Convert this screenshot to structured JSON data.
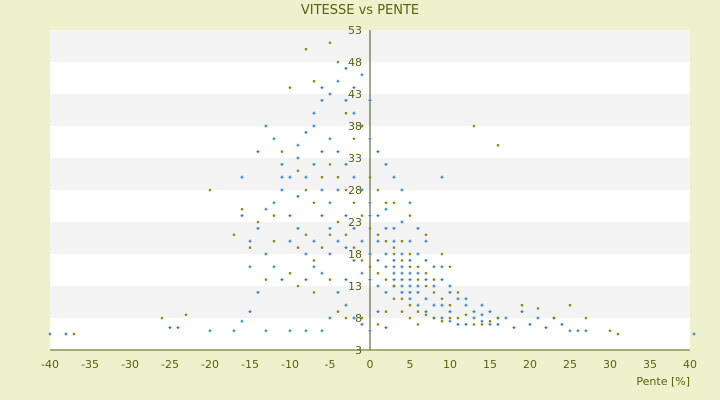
{
  "chart_data": {
    "type": "scatter",
    "title": "VITESSE vs PENTE",
    "xlabel": "Pente [%]",
    "ylabel": "",
    "xlim": [
      -40,
      40
    ],
    "ylim": [
      3,
      53
    ],
    "x_ticks": [
      -40,
      -35,
      -30,
      -25,
      -20,
      -15,
      -10,
      -5,
      0,
      5,
      10,
      15,
      20,
      25,
      30,
      35,
      40
    ],
    "y_ticks": [
      3,
      8,
      13,
      18,
      23,
      28,
      33,
      38,
      43,
      48,
      53
    ],
    "grid": "horizontal-bands",
    "legend": "none",
    "series": [
      {
        "color": "#3a7fc8",
        "marker": "plus",
        "points": [
          [
            -40,
            5.5
          ],
          [
            -38,
            5.5
          ],
          [
            -25,
            6.5
          ],
          [
            -24,
            6.5
          ],
          [
            -20,
            6
          ],
          [
            -17,
            6
          ],
          [
            -16,
            7.5
          ],
          [
            -15,
            9
          ],
          [
            -14,
            12
          ],
          [
            -15,
            20
          ],
          [
            -16,
            30
          ],
          [
            -14,
            34
          ],
          [
            -13,
            38
          ],
          [
            -12,
            36
          ],
          [
            -11,
            32
          ],
          [
            -10,
            30
          ],
          [
            -9,
            35
          ],
          [
            -8,
            37
          ],
          [
            -7,
            40
          ],
          [
            -6,
            42
          ],
          [
            -5,
            43
          ],
          [
            -4,
            45
          ],
          [
            -3,
            42
          ],
          [
            -2,
            40
          ],
          [
            -1,
            38
          ],
          [
            0,
            36
          ],
          [
            1,
            34
          ],
          [
            2,
            32
          ],
          [
            -12,
            26
          ],
          [
            -11,
            28
          ],
          [
            -10,
            24
          ],
          [
            -9,
            27
          ],
          [
            -8,
            30
          ],
          [
            -7,
            32
          ],
          [
            -6,
            34
          ],
          [
            -5,
            36
          ],
          [
            -4,
            34
          ],
          [
            -3,
            32
          ],
          [
            -2,
            30
          ],
          [
            -1,
            28
          ],
          [
            0,
            26
          ],
          [
            1,
            24
          ],
          [
            2,
            22
          ],
          [
            3,
            20
          ],
          [
            4,
            18
          ],
          [
            5,
            17
          ],
          [
            6,
            15
          ],
          [
            7,
            14
          ],
          [
            8,
            13
          ],
          [
            -10,
            20
          ],
          [
            -9,
            22
          ],
          [
            -8,
            18
          ],
          [
            -7,
            20
          ],
          [
            -6,
            24
          ],
          [
            -5,
            26
          ],
          [
            -4,
            28
          ],
          [
            -3,
            24
          ],
          [
            -2,
            22
          ],
          [
            -1,
            20
          ],
          [
            0,
            18
          ],
          [
            1,
            17
          ],
          [
            2,
            16
          ],
          [
            3,
            15
          ],
          [
            4,
            14
          ],
          [
            5,
            13
          ],
          [
            6,
            12
          ],
          [
            7,
            11
          ],
          [
            8,
            10
          ],
          [
            9,
            10
          ],
          [
            10,
            9
          ],
          [
            -8,
            14
          ],
          [
            -7,
            16
          ],
          [
            -6,
            15
          ],
          [
            -5,
            18
          ],
          [
            -4,
            20
          ],
          [
            -3,
            19
          ],
          [
            -2,
            17
          ],
          [
            -1,
            15
          ],
          [
            0,
            14
          ],
          [
            1,
            13
          ],
          [
            2,
            12
          ],
          [
            3,
            13
          ],
          [
            4,
            12
          ],
          [
            5,
            11
          ],
          [
            6,
            10
          ],
          [
            7,
            9
          ],
          [
            8,
            8
          ],
          [
            9,
            8
          ],
          [
            10,
            7.5
          ],
          [
            11,
            7
          ],
          [
            12,
            7
          ],
          [
            3,
            17
          ],
          [
            4,
            16
          ],
          [
            5,
            15
          ],
          [
            3,
            16
          ],
          [
            4,
            15
          ],
          [
            5,
            14
          ],
          [
            6,
            13
          ],
          [
            2,
            18
          ],
          [
            3,
            14
          ],
          [
            4,
            13
          ],
          [
            5,
            12
          ],
          [
            13,
            8
          ],
          [
            14,
            7.5
          ],
          [
            15,
            7
          ],
          [
            16,
            7
          ],
          [
            18,
            6.5
          ],
          [
            20,
            7
          ],
          [
            22,
            6.5
          ],
          [
            24,
            7
          ],
          [
            25,
            6
          ],
          [
            26,
            6
          ],
          [
            27,
            6
          ],
          [
            10,
            13
          ],
          [
            12,
            11
          ],
          [
            14,
            10
          ],
          [
            9,
            16
          ],
          [
            7,
            20
          ],
          [
            6,
            22
          ],
          [
            5,
            26
          ],
          [
            9,
            30
          ],
          [
            3,
            30
          ],
          [
            4,
            28
          ],
          [
            -1,
            46
          ],
          [
            -3,
            47
          ],
          [
            -2,
            44
          ],
          [
            0,
            42
          ],
          [
            -6,
            44
          ],
          [
            -7,
            38
          ],
          [
            -9,
            33
          ],
          [
            -11,
            30
          ],
          [
            -13,
            25
          ],
          [
            -14,
            22
          ],
          [
            -3,
            10
          ],
          [
            -2,
            8
          ],
          [
            -1,
            7
          ],
          [
            0,
            6
          ],
          [
            1,
            9
          ],
          [
            2,
            6.5
          ],
          [
            -5,
            8
          ],
          [
            -6,
            6
          ],
          [
            -8,
            6
          ],
          [
            -10,
            6
          ],
          [
            -13,
            6
          ],
          [
            -11,
            14
          ],
          [
            -12,
            16
          ],
          [
            -13,
            18
          ],
          [
            -15,
            16
          ],
          [
            -16,
            24
          ],
          [
            -4,
            12
          ],
          [
            -3,
            14
          ],
          [
            -5,
            22
          ],
          [
            -6,
            28
          ],
          [
            0,
            24
          ],
          [
            1,
            20
          ],
          [
            2,
            25
          ],
          [
            3,
            22
          ],
          [
            4,
            23
          ],
          [
            5,
            20
          ],
          [
            6,
            18
          ],
          [
            7,
            17
          ],
          [
            8,
            16
          ],
          [
            9,
            14
          ],
          [
            10,
            12
          ],
          [
            11,
            11
          ],
          [
            12,
            10
          ],
          [
            13,
            9
          ],
          [
            14,
            8.5
          ],
          [
            15,
            9
          ],
          [
            16,
            8
          ],
          [
            17,
            8
          ],
          [
            19,
            9
          ],
          [
            21,
            8
          ],
          [
            23,
            8
          ],
          [
            40.5,
            5.5
          ]
        ]
      },
      {
        "color": "#8a8a10",
        "marker": "dot",
        "points": [
          [
            -37,
            5.5
          ],
          [
            -26,
            8
          ],
          [
            -23,
            8.5
          ],
          [
            -20,
            28
          ],
          [
            -17,
            21
          ],
          [
            -16,
            25
          ],
          [
            -14,
            23
          ],
          [
            -12,
            24
          ],
          [
            -10,
            44
          ],
          [
            -8,
            50
          ],
          [
            -7,
            45
          ],
          [
            -5,
            51
          ],
          [
            -4,
            48
          ],
          [
            -3,
            40
          ],
          [
            -2,
            36
          ],
          [
            -1,
            38
          ],
          [
            0,
            30
          ],
          [
            1,
            28
          ],
          [
            2,
            26
          ],
          [
            -11,
            34
          ],
          [
            -9,
            31
          ],
          [
            -8,
            28
          ],
          [
            -7,
            26
          ],
          [
            -6,
            30
          ],
          [
            -5,
            32
          ],
          [
            -4,
            30
          ],
          [
            -3,
            28
          ],
          [
            -2,
            26
          ],
          [
            -1,
            24
          ],
          [
            0,
            22
          ],
          [
            1,
            21
          ],
          [
            2,
            20
          ],
          [
            3,
            18
          ],
          [
            4,
            17
          ],
          [
            5,
            16
          ],
          [
            6,
            14
          ],
          [
            7,
            13
          ],
          [
            8,
            12
          ],
          [
            9,
            11
          ],
          [
            10,
            10
          ],
          [
            -9,
            19
          ],
          [
            -8,
            21
          ],
          [
            -7,
            17
          ],
          [
            -6,
            19
          ],
          [
            -5,
            21
          ],
          [
            -4,
            23
          ],
          [
            -3,
            21
          ],
          [
            -2,
            19
          ],
          [
            -1,
            17
          ],
          [
            0,
            16
          ],
          [
            1,
            15
          ],
          [
            2,
            14
          ],
          [
            3,
            13
          ],
          [
            4,
            11
          ],
          [
            5,
            10
          ],
          [
            6,
            9
          ],
          [
            7,
            8.5
          ],
          [
            8,
            8
          ],
          [
            9,
            7.5
          ],
          [
            10,
            8
          ],
          [
            11,
            8
          ],
          [
            12,
            8.5
          ],
          [
            13,
            7
          ],
          [
            14,
            7
          ],
          [
            15,
            7.5
          ],
          [
            16,
            8
          ],
          [
            19,
            10
          ],
          [
            21,
            9.5
          ],
          [
            23,
            8
          ],
          [
            25,
            10
          ],
          [
            27,
            8
          ],
          [
            30,
            6
          ],
          [
            31,
            5.5
          ],
          [
            13,
            38
          ],
          [
            16,
            35
          ],
          [
            3,
            26
          ],
          [
            5,
            24
          ],
          [
            7,
            21
          ],
          [
            9,
            18
          ],
          [
            10,
            16
          ],
          [
            -12,
            20
          ],
          [
            -13,
            14
          ],
          [
            -15,
            19
          ],
          [
            -10,
            15
          ],
          [
            -9,
            13
          ],
          [
            -7,
            12
          ],
          [
            -5,
            14
          ],
          [
            -4,
            9
          ],
          [
            -3,
            8
          ],
          [
            -1,
            8
          ],
          [
            1,
            7
          ],
          [
            2,
            9
          ],
          [
            3,
            11
          ],
          [
            4,
            9
          ],
          [
            5,
            8
          ],
          [
            6,
            7
          ],
          [
            3,
            19
          ],
          [
            4,
            20
          ],
          [
            5,
            18
          ],
          [
            6,
            16
          ],
          [
            7,
            15
          ],
          [
            8,
            14
          ],
          [
            11,
            12
          ]
        ]
      }
    ]
  }
}
